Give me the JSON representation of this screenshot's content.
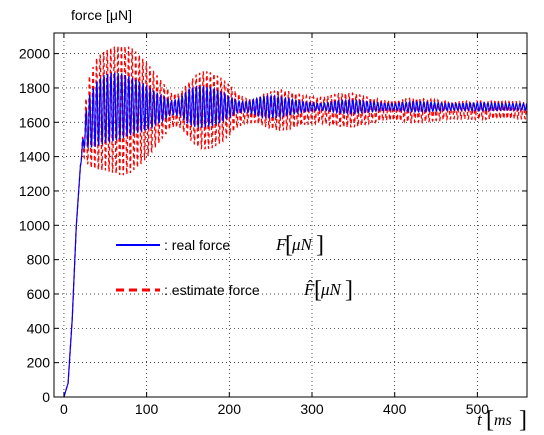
{
  "chart_data": {
    "type": "line",
    "title": "",
    "ylabel": "force [μN]",
    "xlabel": {
      "variable": "t",
      "unit": "ms"
    },
    "xlim": [
      -12,
      560
    ],
    "ylim": [
      0,
      2120
    ],
    "x_ticks": [
      0,
      100,
      200,
      300,
      400,
      500
    ],
    "y_ticks": [
      0,
      200,
      400,
      600,
      800,
      1000,
      1200,
      1400,
      1600,
      1800,
      2000
    ],
    "grid": true,
    "legend_position": "center-left",
    "series": [
      {
        "name": ": real force F[μN]",
        "label_text": ": real force ",
        "label_symbol": "F",
        "label_unit": "μN",
        "color": "#0000ff",
        "style": "solid",
        "x": [
          0,
          5,
          10,
          15,
          20,
          25,
          30,
          40,
          50,
          60,
          70,
          80,
          90,
          100,
          110,
          120,
          130,
          140,
          150,
          160,
          170,
          180,
          190,
          200,
          210,
          220,
          230,
          240,
          250,
          260,
          270,
          280,
          290,
          300,
          310,
          320,
          330,
          340,
          350,
          360,
          370,
          380,
          390,
          400,
          410,
          420,
          430,
          440,
          450,
          460,
          470,
          480,
          490,
          500,
          510,
          520,
          530,
          540,
          550,
          560
        ],
        "y_center": [
          0,
          80,
          450,
          1000,
          1350,
          1540,
          1600,
          1650,
          1680,
          1690,
          1695,
          1695,
          1690,
          1685,
          1680,
          1680,
          1685,
          1690,
          1690,
          1690,
          1690,
          1690,
          1690,
          1690,
          1690,
          1690,
          1690,
          1690,
          1690,
          1690,
          1690,
          1690,
          1690,
          1690,
          1690,
          1690,
          1690,
          1690,
          1690,
          1690,
          1690,
          1690,
          1690,
          1690,
          1690,
          1690,
          1690,
          1690,
          1690,
          1690,
          1690,
          1690,
          1690,
          1690,
          1690,
          1690,
          1690,
          1690,
          1690,
          1690
        ],
        "y_amplitude": [
          0,
          0,
          0,
          0,
          0,
          80,
          150,
          190,
          200,
          200,
          190,
          170,
          150,
          130,
          100,
          70,
          40,
          50,
          100,
          120,
          120,
          110,
          90,
          60,
          35,
          30,
          45,
          60,
          65,
          60,
          50,
          40,
          30,
          25,
          20,
          25,
          35,
          40,
          40,
          35,
          30,
          25,
          20,
          20,
          25,
          30,
          30,
          28,
          25,
          22,
          20,
          20,
          22,
          24,
          24,
          22,
          20,
          20,
          20,
          20
        ],
        "oscillation_period_ms": 4.3
      },
      {
        "name": ": estimate force F̂[μN]",
        "label_text": ": estimate force ",
        "label_symbol": "F̂",
        "label_unit": "μN",
        "color": "#ff0000",
        "style": "dashed",
        "x": [
          0,
          5,
          10,
          15,
          20,
          25,
          30,
          40,
          50,
          60,
          70,
          80,
          90,
          100,
          110,
          120,
          130,
          140,
          150,
          160,
          170,
          180,
          190,
          200,
          210,
          220,
          230,
          240,
          250,
          260,
          270,
          280,
          290,
          300,
          310,
          320,
          330,
          340,
          350,
          360,
          370,
          380,
          390,
          400,
          410,
          420,
          430,
          440,
          450,
          460,
          470,
          480,
          490,
          500,
          510,
          520,
          530,
          540,
          550,
          560
        ],
        "y_center": [
          0,
          80,
          450,
          1000,
          1350,
          1540,
          1600,
          1650,
          1670,
          1670,
          1670,
          1670,
          1670,
          1670,
          1670,
          1670,
          1670,
          1670,
          1670,
          1670,
          1670,
          1670,
          1670,
          1670,
          1670,
          1670,
          1670,
          1670,
          1670,
          1670,
          1670,
          1670,
          1670,
          1670,
          1670,
          1670,
          1670,
          1670,
          1670,
          1670,
          1670,
          1670,
          1670,
          1670,
          1670,
          1670,
          1670,
          1670,
          1670,
          1670,
          1670,
          1670,
          1670,
          1670,
          1670,
          1670,
          1670,
          1670,
          1670,
          1670
        ],
        "y_amplitude": [
          0,
          0,
          0,
          0,
          0,
          140,
          260,
          330,
          350,
          370,
          380,
          370,
          330,
          280,
          220,
          160,
          100,
          100,
          160,
          210,
          230,
          220,
          190,
          150,
          100,
          70,
          70,
          90,
          110,
          120,
          115,
          100,
          85,
          80,
          75,
          85,
          95,
          100,
          100,
          90,
          75,
          65,
          60,
          60,
          65,
          70,
          70,
          65,
          60,
          55,
          50,
          50,
          52,
          54,
          54,
          52,
          50,
          50,
          50,
          50
        ],
        "oscillation_period_ms": 4.3
      }
    ]
  }
}
